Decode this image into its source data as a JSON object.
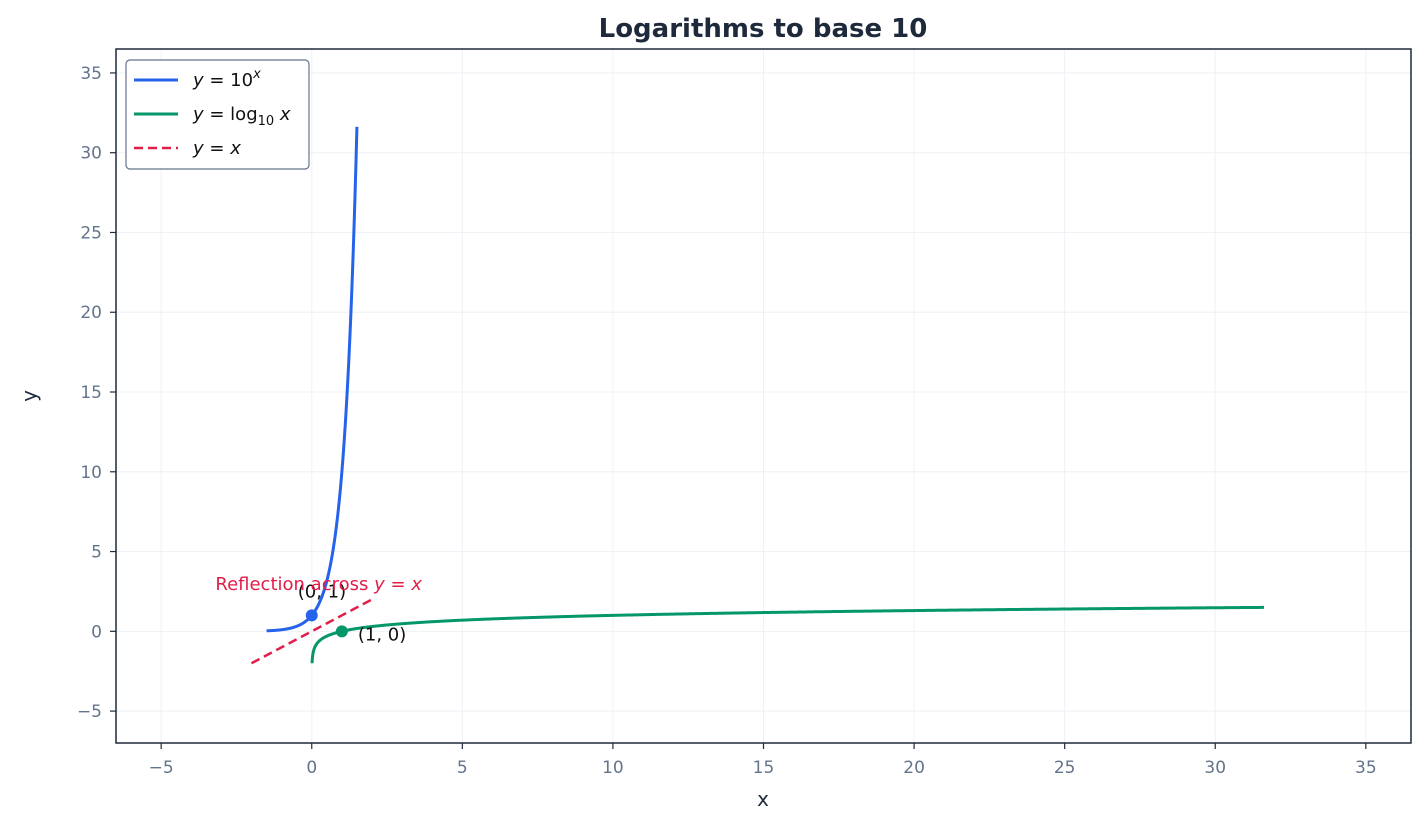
{
  "chart_data": {
    "type": "line",
    "title": "Logarithms to base 10",
    "xlabel": "x",
    "ylabel": "y",
    "xlim": [
      -6.5,
      36.5
    ],
    "ylim": [
      -7.0,
      36.5
    ],
    "xticks": [
      -5,
      0,
      5,
      10,
      15,
      20,
      25,
      30,
      35
    ],
    "yticks": [
      -5,
      0,
      5,
      10,
      15,
      20,
      25,
      30,
      35
    ],
    "xtick_labels": [
      "−5",
      "0",
      "5",
      "10",
      "15",
      "20",
      "25",
      "30",
      "35"
    ],
    "ytick_labels": [
      "−5",
      "0",
      "5",
      "10",
      "15",
      "20",
      "25",
      "30",
      "35"
    ],
    "grid": true,
    "legend_position": "top-left",
    "series": [
      {
        "name": "y = 10^x",
        "legend_parts": [
          "y",
          " = 10",
          "x"
        ],
        "function": "10^x",
        "domain": [
          -1.5,
          1.5
        ],
        "color": "#2563eb",
        "style": "solid"
      },
      {
        "name": "y = log10 x",
        "legend_parts": [
          "y",
          " = log",
          "10",
          " x"
        ],
        "function": "log10(x)",
        "domain": [
          0.01,
          31.62
        ],
        "color": "#059669",
        "style": "solid"
      },
      {
        "name": "y = x",
        "legend_parts": [
          "y",
          " = ",
          "x"
        ],
        "function": "x",
        "domain": [
          -2,
          2
        ],
        "color": "#e11d48",
        "style": "dashed"
      }
    ],
    "points": [
      {
        "x": 1,
        "y": 0,
        "label": "(1, 0)",
        "color": "#059669"
      },
      {
        "x": 0,
        "y": 1,
        "label": "(0, 1)",
        "color": "#2563eb"
      }
    ],
    "annotations": [
      {
        "text_parts": [
          "Reflection across ",
          "y",
          " = ",
          "x"
        ],
        "x": -3.2,
        "y": 2.6,
        "color": "#e11d48"
      }
    ]
  }
}
